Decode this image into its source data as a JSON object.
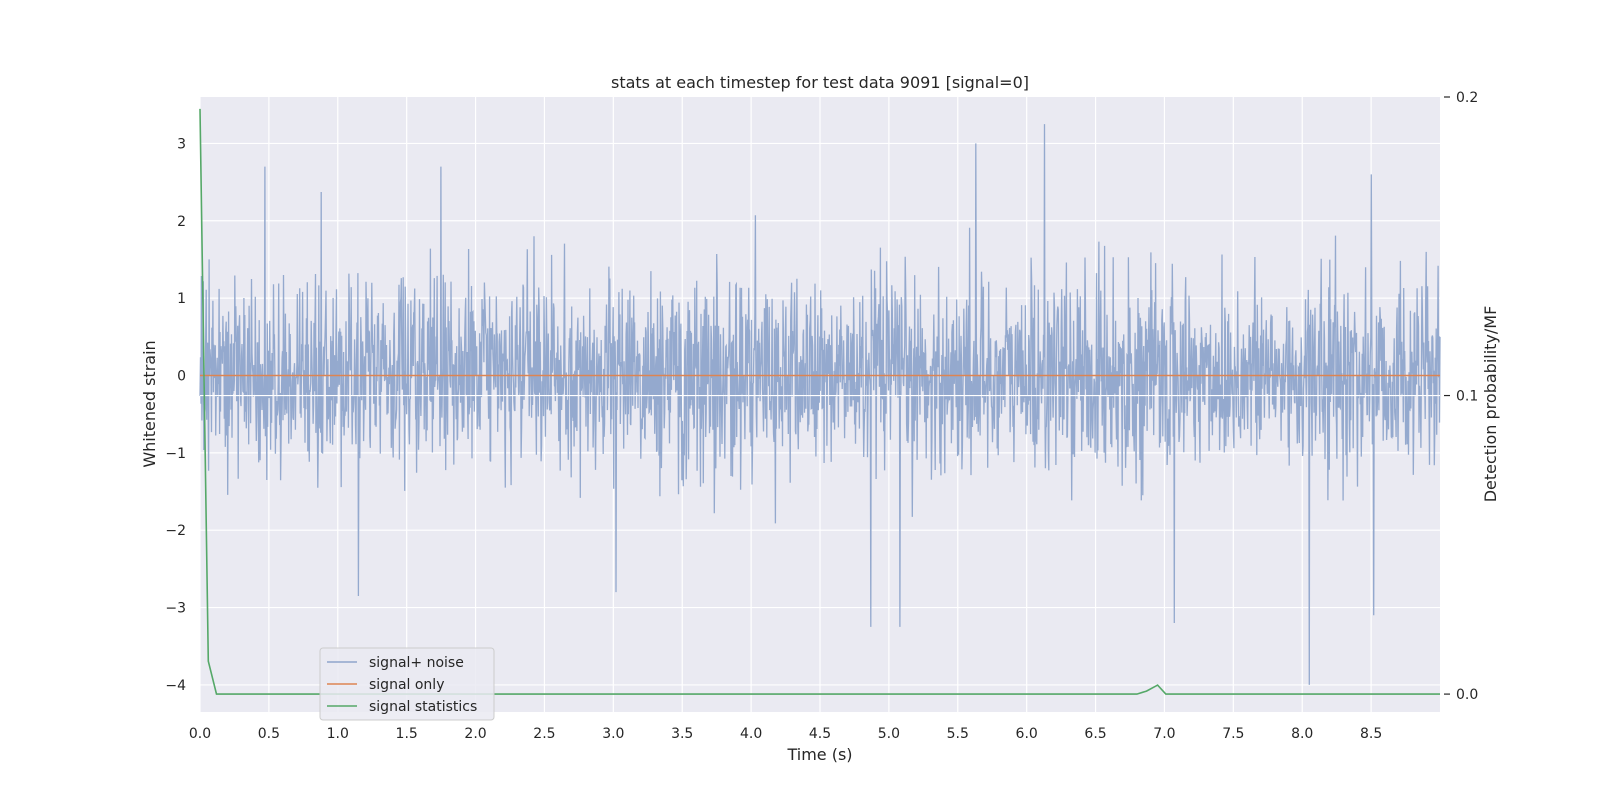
{
  "chart_data": {
    "type": "line",
    "title": "stats at each timestep for test data 9091 [signal=0]",
    "xlabel": "Time (s)",
    "ylabel": "Whitened strain",
    "y2label": "Detection probability/MF",
    "xlim": [
      0,
      9.0
    ],
    "ylim": [
      -4.35,
      3.6
    ],
    "y2lim": [
      -0.006,
      0.2
    ],
    "x_ticks": [
      "0.0",
      "0.5",
      "1.0",
      "1.5",
      "2.0",
      "2.5",
      "3.0",
      "3.5",
      "4.0",
      "4.5",
      "5.0",
      "5.5",
      "6.0",
      "6.5",
      "7.0",
      "7.5",
      "8.0",
      "8.5"
    ],
    "y_ticks": [
      "3",
      "2",
      "1",
      "0",
      "−1",
      "−2",
      "−3",
      "−4"
    ],
    "y2_ticks": [
      "0.2",
      "0.1",
      "0.0"
    ],
    "grid": true,
    "legend_position": "lower-left",
    "background_color": "#eaeaf2",
    "series": [
      {
        "name": "signal+ noise",
        "color": "#8fa5cb",
        "kind": "noise",
        "sample_count": 2600,
        "typical_range": [
          -1.4,
          1.4
        ],
        "notable_peaks": [
          {
            "x": 0.47,
            "y": 2.7
          },
          {
            "x": 1.75,
            "y": 2.7
          },
          {
            "x": 5.63,
            "y": 3.0
          },
          {
            "x": 6.13,
            "y": 3.25
          },
          {
            "x": 8.5,
            "y": 2.6
          },
          {
            "x": 4.87,
            "y": -3.25
          },
          {
            "x": 5.08,
            "y": -3.25
          },
          {
            "x": 7.07,
            "y": -3.2
          },
          {
            "x": 8.05,
            "y": -4.0
          },
          {
            "x": 8.52,
            "y": -3.1
          },
          {
            "x": 1.15,
            "y": -2.85
          },
          {
            "x": 3.02,
            "y": -2.8
          }
        ]
      },
      {
        "name": "signal only",
        "color": "#dd8452",
        "x": [
          0.0,
          9.0
        ],
        "y": [
          0.0,
          0.0
        ]
      },
      {
        "name": "signal statistics",
        "color": "#55a868",
        "axis": "right",
        "x": [
          0.0,
          0.06,
          0.12,
          6.8,
          6.87,
          6.95,
          7.01,
          9.0
        ],
        "y": [
          0.196,
          0.011,
          0.0,
          0.0,
          0.001,
          0.003,
          0.0,
          0.0
        ]
      }
    ]
  }
}
